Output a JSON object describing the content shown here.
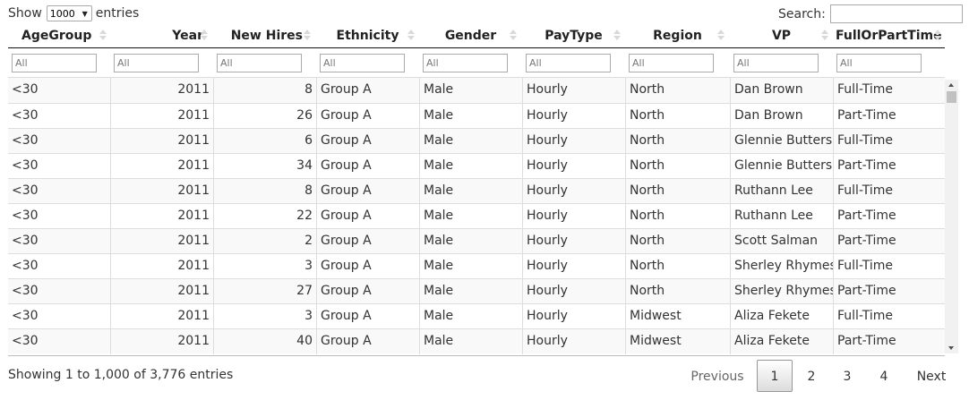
{
  "length_menu": {
    "show_label": "Show",
    "selected_value": "1000",
    "entries_label": "entries"
  },
  "search": {
    "label": "Search:",
    "value": ""
  },
  "columns": [
    {
      "label": "AgeGroup"
    },
    {
      "label": "Year"
    },
    {
      "label": "New Hires"
    },
    {
      "label": "Ethnicity"
    },
    {
      "label": "Gender"
    },
    {
      "label": "PayType"
    },
    {
      "label": "Region"
    },
    {
      "label": "VP"
    },
    {
      "label": "FullOrPartTime"
    }
  ],
  "filter_placeholder": "All",
  "rows": [
    [
      "<30",
      "2011",
      "8",
      "Group A",
      "Male",
      "Hourly",
      "North",
      "Dan Brown",
      "Full-Time"
    ],
    [
      "<30",
      "2011",
      "26",
      "Group A",
      "Male",
      "Hourly",
      "North",
      "Dan Brown",
      "Part-Time"
    ],
    [
      "<30",
      "2011",
      "6",
      "Group A",
      "Male",
      "Hourly",
      "North",
      "Glennie Butters",
      "Full-Time"
    ],
    [
      "<30",
      "2011",
      "34",
      "Group A",
      "Male",
      "Hourly",
      "North",
      "Glennie Butters",
      "Part-Time"
    ],
    [
      "<30",
      "2011",
      "8",
      "Group A",
      "Male",
      "Hourly",
      "North",
      "Ruthann Lee",
      "Full-Time"
    ],
    [
      "<30",
      "2011",
      "22",
      "Group A",
      "Male",
      "Hourly",
      "North",
      "Ruthann Lee",
      "Part-Time"
    ],
    [
      "<30",
      "2011",
      "2",
      "Group A",
      "Male",
      "Hourly",
      "North",
      "Scott Salman",
      "Part-Time"
    ],
    [
      "<30",
      "2011",
      "3",
      "Group A",
      "Male",
      "Hourly",
      "North",
      "Sherley Rhymes",
      "Full-Time"
    ],
    [
      "<30",
      "2011",
      "27",
      "Group A",
      "Male",
      "Hourly",
      "North",
      "Sherley Rhymes",
      "Part-Time"
    ],
    [
      "<30",
      "2011",
      "3",
      "Group A",
      "Male",
      "Hourly",
      "Midwest",
      "Aliza Fekete",
      "Full-Time"
    ],
    [
      "<30",
      "2011",
      "40",
      "Group A",
      "Male",
      "Hourly",
      "Midwest",
      "Aliza Fekete",
      "Part-Time"
    ]
  ],
  "info_text": "Showing 1 to 1,000 of 3,776 entries",
  "pagination": {
    "previous_label": "Previous",
    "pages": [
      "1",
      "2",
      "3",
      "4"
    ],
    "current_page": "1",
    "next_label": "Next"
  }
}
